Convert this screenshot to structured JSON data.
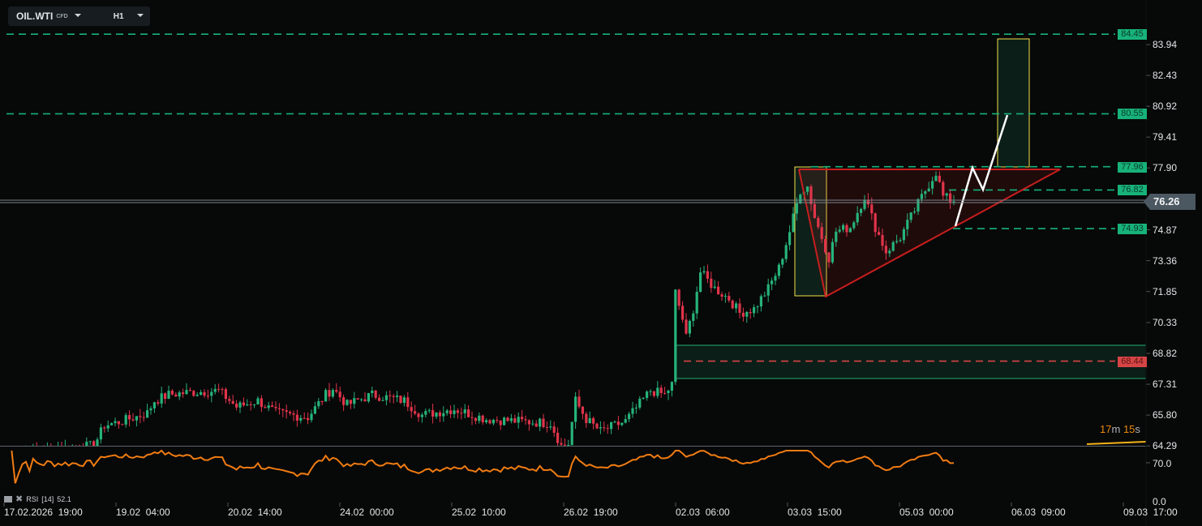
{
  "toolbar": {
    "symbol": "OIL.WTI",
    "symbol_type": "CFD",
    "timeframe": "H1"
  },
  "colors": {
    "up": "#26b37a",
    "down": "#e0344a",
    "level": "#17b27a",
    "stop": "#d64545",
    "pattern": "#c81e1e",
    "box": "#f2e14a",
    "rsi": "#f07c12",
    "timer": "#e88a10"
  },
  "chart_data": {
    "type": "candlestick",
    "price_axis_ticks": [
      "83.94",
      "82.43",
      "80.92",
      "79.41",
      "77.90",
      "76.26",
      "74.87",
      "73.36",
      "71.85",
      "70.33",
      "68.82",
      "67.31",
      "65.80",
      "64.29"
    ],
    "price_ylim": [
      64.29,
      84.4
    ],
    "current_price": "76.26",
    "levels": [
      {
        "label": "84.45",
        "value": 84.45,
        "color": "green"
      },
      {
        "label": "80.55",
        "value": 80.55,
        "color": "green"
      },
      {
        "label": "77.96",
        "value": 77.96,
        "color": "green"
      },
      {
        "label": "76.82",
        "value": 76.82,
        "color": "green"
      },
      {
        "label": "74.93",
        "value": 74.93,
        "color": "green"
      },
      {
        "label": "68.44",
        "value": 68.44,
        "color": "red"
      }
    ],
    "time_labels": [
      "17.02.2026  19:00",
      "19.02  04:00",
      "20.02  14:00",
      "24.02  00:00",
      "25.02  10:00",
      "26.02  19:00",
      "02.03  06:00",
      "03.03  15:00",
      "05.03  00:00",
      "06.03  09:00",
      "09.03  17:00"
    ],
    "close_anchors": [
      [
        0,
        64.0
      ],
      [
        24,
        64.3
      ],
      [
        27,
        65.3
      ],
      [
        32,
        65.5
      ],
      [
        39,
        65.9
      ],
      [
        41,
        66.5
      ],
      [
        45,
        66.8
      ],
      [
        50,
        66.9
      ],
      [
        59,
        67.0
      ],
      [
        64,
        66.2
      ],
      [
        70,
        66.5
      ],
      [
        75,
        65.9
      ],
      [
        84,
        65.7
      ],
      [
        89,
        66.8
      ],
      [
        91,
        67.1
      ],
      [
        95,
        66.3
      ],
      [
        102,
        66.8
      ],
      [
        111,
        66.5
      ],
      [
        116,
        65.8
      ],
      [
        125,
        66.1
      ],
      [
        134,
        65.6
      ],
      [
        143,
        65.5
      ],
      [
        152,
        65.4
      ],
      [
        155,
        64.3
      ],
      [
        157,
        64.4
      ],
      [
        159,
        66.5
      ],
      [
        162,
        65.6
      ],
      [
        166,
        65.0
      ],
      [
        173,
        65.5
      ],
      [
        180,
        67.0
      ],
      [
        184,
        66.8
      ],
      [
        186,
        67.3
      ],
      [
        187,
        71.8
      ],
      [
        189,
        70.5
      ],
      [
        190,
        69.6
      ],
      [
        192,
        71.0
      ],
      [
        194,
        72.8
      ],
      [
        198,
        72.0
      ],
      [
        202,
        71.5
      ],
      [
        205,
        70.8
      ],
      [
        209,
        71.0
      ],
      [
        213,
        72.0
      ],
      [
        216,
        73.0
      ],
      [
        219,
        74.8
      ],
      [
        222,
        76.8
      ],
      [
        224,
        77.0
      ],
      [
        226,
        75.5
      ],
      [
        230,
        73.5
      ],
      [
        232,
        74.8
      ],
      [
        236,
        75.0
      ],
      [
        240,
        76.5
      ],
      [
        243,
        75.0
      ],
      [
        246,
        73.8
      ],
      [
        250,
        74.5
      ],
      [
        253,
        75.5
      ],
      [
        257,
        76.8
      ],
      [
        260,
        77.7
      ],
      [
        262,
        76.5
      ],
      [
        265,
        76.26
      ]
    ],
    "rsi": {
      "label": "RSI",
      "period": "[14]",
      "value": "52.1",
      "axis_ticks": [
        "70.0",
        "0.0"
      ]
    }
  },
  "timer": {
    "minutes": "17",
    "m": "m",
    "seconds": "15",
    "s": "s"
  }
}
